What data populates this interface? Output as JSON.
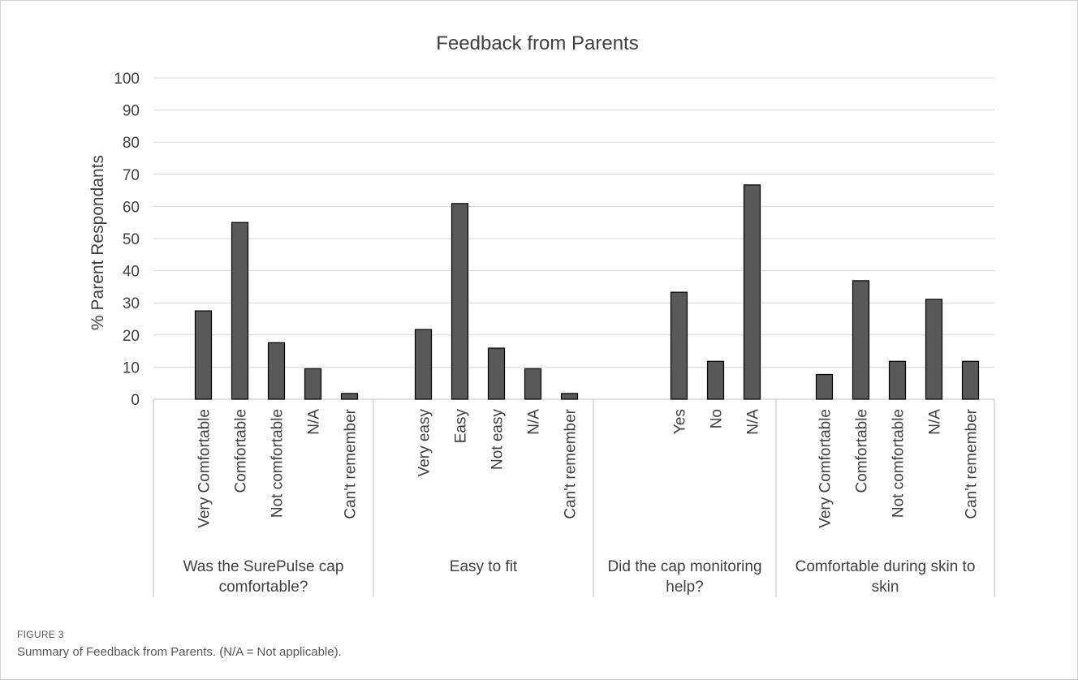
{
  "figure": {
    "label": "FIGURE 3",
    "caption": "Summary of Feedback from Parents. (N/A = Not applicable)."
  },
  "chart_data": {
    "type": "bar",
    "title": "Feedback from Parents",
    "ylabel": "% Parent Respondants",
    "xlabel": "",
    "ylim": [
      0,
      100
    ],
    "yticks": [
      0,
      10,
      20,
      30,
      40,
      50,
      60,
      70,
      80,
      90,
      100
    ],
    "grid": true,
    "bar_color": "#595959",
    "groups": [
      {
        "name": "Was the SurePulse cap comfortable?",
        "label_lines": [
          "Was the SurePulse cap",
          "comfortable?"
        ],
        "categories": [
          "Very Comfortable",
          "Comfortable",
          "Not comfortable",
          "N/A",
          "Can't remember"
        ],
        "values": [
          27.5,
          55,
          17.6,
          9.5,
          1.8
        ]
      },
      {
        "name": "Easy to fit",
        "label_lines": [
          "Easy to fit"
        ],
        "categories": [
          "Very easy",
          "Easy",
          "Not easy",
          "N/A",
          "Can't remember"
        ],
        "values": [
          21.7,
          60.9,
          15.9,
          9.5,
          1.8
        ]
      },
      {
        "name": "Did the cap monitoring help?",
        "label_lines": [
          "Did the cap monitoring",
          "help?"
        ],
        "categories": [
          "Yes",
          "No",
          "N/A"
        ],
        "values": [
          33.3,
          11.8,
          66.7
        ]
      },
      {
        "name": "Comfortable during skin to skin",
        "label_lines": [
          "Comfortable during skin to",
          "skin"
        ],
        "categories": [
          "Very Comfortable",
          "Comfortable",
          "Not comfortable",
          "N/A",
          "Can't remember"
        ],
        "values": [
          7.7,
          36.9,
          11.8,
          31.1,
          11.8
        ]
      }
    ]
  }
}
